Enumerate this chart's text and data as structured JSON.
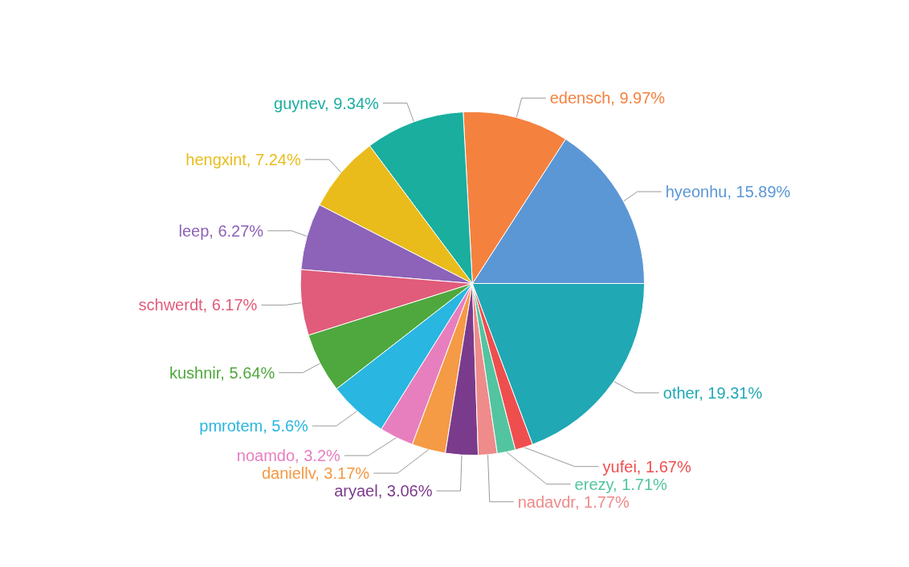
{
  "chart_data": {
    "type": "pie",
    "categories": [
      "hyeonhu",
      "edensch",
      "guynev",
      "hengxint",
      "leep",
      "schwerdt",
      "kushnir",
      "pmrotem",
      "noamdo",
      "daniellv",
      "aryael",
      "nadavdr",
      "erezy",
      "yufei",
      "other"
    ],
    "values": [
      15.89,
      9.97,
      9.34,
      7.24,
      6.27,
      6.17,
      5.64,
      5.6,
      3.2,
      3.17,
      3.06,
      1.77,
      1.71,
      1.67,
      19.31
    ],
    "value_labels": [
      "15.89%",
      "9.97%",
      "9.34%",
      "7.24%",
      "6.27%",
      "6.17%",
      "5.64%",
      "5.6%",
      "3.2%",
      "3.17%",
      "3.06%",
      "1.77%",
      "1.71%",
      "1.67%",
      "19.31%"
    ],
    "colors": [
      "#5b97d5",
      "#f5813f",
      "#1aae9f",
      "#e9bc1b",
      "#8c63b8",
      "#e15b7a",
      "#4fa83d",
      "#29b6e0",
      "#e77fbf",
      "#f59a45",
      "#7b3b8c",
      "#ef8b8b",
      "#53c4a0",
      "#ef4e4e",
      "#20a8b4"
    ],
    "legend": false
  }
}
